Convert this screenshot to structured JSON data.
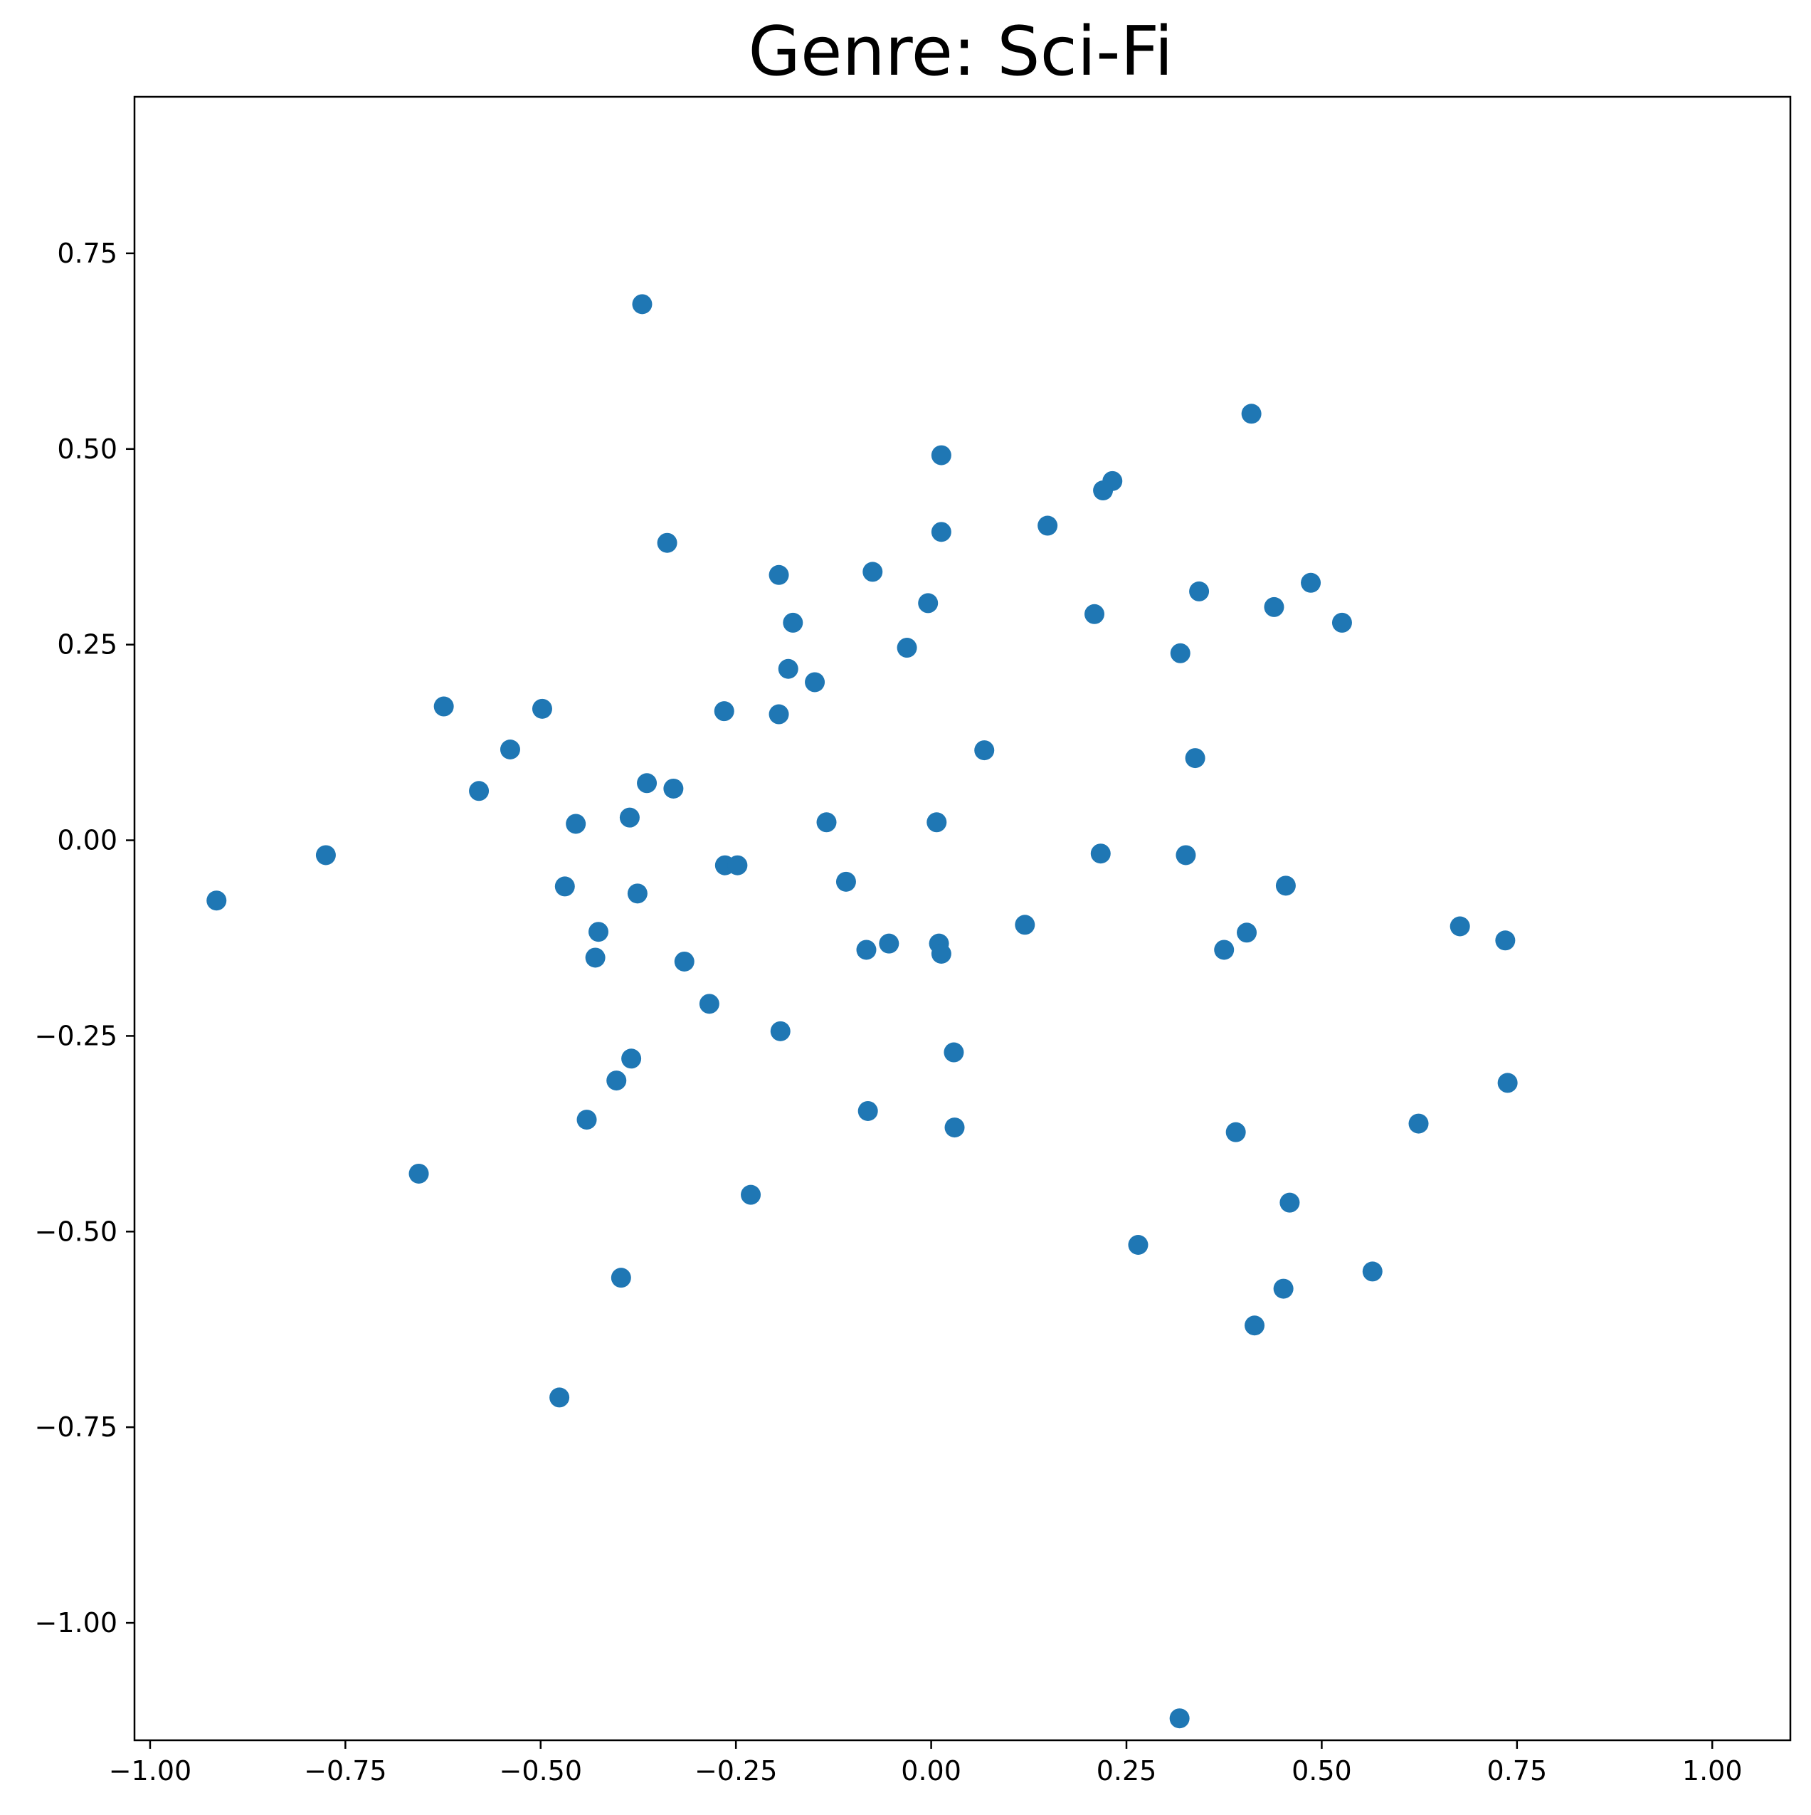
{
  "chart_data": {
    "type": "scatter",
    "title": "Genre: Sci-Fi",
    "xlabel": "",
    "ylabel": "",
    "xlim": [
      -1.02,
      1.1
    ],
    "ylim": [
      -1.15,
      0.95
    ],
    "x_ticks": [
      -1.0,
      -0.75,
      -0.5,
      -0.25,
      0.0,
      0.25,
      0.5,
      0.75,
      1.0
    ],
    "x_tick_labels": [
      "−1.00",
      "−0.75",
      "−0.50",
      "−0.25",
      "0.00",
      "0.25",
      "0.50",
      "0.75",
      "1.00"
    ],
    "y_ticks": [
      0.75,
      0.5,
      0.25,
      0.0,
      -0.25,
      -0.5,
      -0.75,
      -1.0
    ],
    "y_tick_labels": [
      "0.75",
      "0.50",
      "0.25",
      "0.00",
      "−0.25",
      "−0.50",
      "−0.75",
      "−1.00"
    ],
    "grid": false,
    "legend": false,
    "marker_color": "#1f77b4",
    "points": [
      {
        "x": -0.37,
        "y": 0.685
      },
      {
        "x": 0.41,
        "y": 0.545
      },
      {
        "x": 0.013,
        "y": 0.492
      },
      {
        "x": 0.232,
        "y": 0.459
      },
      {
        "x": 0.22,
        "y": 0.447
      },
      {
        "x": 0.149,
        "y": 0.402
      },
      {
        "x": 0.013,
        "y": 0.394
      },
      {
        "x": -0.338,
        "y": 0.38
      },
      {
        "x": -0.075,
        "y": 0.343
      },
      {
        "x": -0.195,
        "y": 0.339
      },
      {
        "x": 0.486,
        "y": 0.329
      },
      {
        "x": 0.343,
        "y": 0.318
      },
      {
        "x": -0.004,
        "y": 0.303
      },
      {
        "x": 0.439,
        "y": 0.298
      },
      {
        "x": 0.209,
        "y": 0.289
      },
      {
        "x": 0.526,
        "y": 0.278
      },
      {
        "x": -0.177,
        "y": 0.278
      },
      {
        "x": -0.031,
        "y": 0.246
      },
      {
        "x": 0.319,
        "y": 0.239
      },
      {
        "x": -0.183,
        "y": 0.219
      },
      {
        "x": -0.149,
        "y": 0.202
      },
      {
        "x": -0.624,
        "y": 0.171
      },
      {
        "x": -0.498,
        "y": 0.168
      },
      {
        "x": -0.265,
        "y": 0.165
      },
      {
        "x": -0.195,
        "y": 0.161
      },
      {
        "x": -0.539,
        "y": 0.116
      },
      {
        "x": 0.068,
        "y": 0.115
      },
      {
        "x": 0.338,
        "y": 0.105
      },
      {
        "x": -0.364,
        "y": 0.073
      },
      {
        "x": -0.33,
        "y": 0.066
      },
      {
        "x": -0.579,
        "y": 0.063
      },
      {
        "x": -0.386,
        "y": 0.029
      },
      {
        "x": -0.134,
        "y": 0.023
      },
      {
        "x": 0.007,
        "y": 0.023
      },
      {
        "x": -0.455,
        "y": 0.021
      },
      {
        "x": -0.775,
        "y": -0.019
      },
      {
        "x": 0.217,
        "y": -0.017
      },
      {
        "x": 0.326,
        "y": -0.019
      },
      {
        "x": -0.264,
        "y": -0.032
      },
      {
        "x": -0.248,
        "y": -0.032
      },
      {
        "x": -0.109,
        "y": -0.053
      },
      {
        "x": 0.454,
        "y": -0.058
      },
      {
        "x": -0.469,
        "y": -0.059
      },
      {
        "x": -0.376,
        "y": -0.068
      },
      {
        "x": -0.915,
        "y": -0.077
      },
      {
        "x": 0.12,
        "y": -0.108
      },
      {
        "x": 0.677,
        "y": -0.11
      },
      {
        "x": -0.426,
        "y": -0.117
      },
      {
        "x": 0.404,
        "y": -0.118
      },
      {
        "x": 0.735,
        "y": -0.128
      },
      {
        "x": 0.01,
        "y": -0.132
      },
      {
        "x": -0.054,
        "y": -0.132
      },
      {
        "x": -0.083,
        "y": -0.14
      },
      {
        "x": 0.375,
        "y": -0.14
      },
      {
        "x": 0.013,
        "y": -0.145
      },
      {
        "x": -0.43,
        "y": -0.15
      },
      {
        "x": -0.316,
        "y": -0.155
      },
      {
        "x": -0.284,
        "y": -0.209
      },
      {
        "x": -0.193,
        "y": -0.244
      },
      {
        "x": 0.029,
        "y": -0.271
      },
      {
        "x": -0.384,
        "y": -0.279
      },
      {
        "x": -0.403,
        "y": -0.307
      },
      {
        "x": 0.738,
        "y": -0.31
      },
      {
        "x": -0.081,
        "y": -0.346
      },
      {
        "x": -0.441,
        "y": -0.357
      },
      {
        "x": 0.624,
        "y": -0.362
      },
      {
        "x": 0.03,
        "y": -0.367
      },
      {
        "x": 0.39,
        "y": -0.373
      },
      {
        "x": -0.656,
        "y": -0.426
      },
      {
        "x": -0.231,
        "y": -0.453
      },
      {
        "x": 0.459,
        "y": -0.463
      },
      {
        "x": 0.265,
        "y": -0.517
      },
      {
        "x": 0.565,
        "y": -0.551
      },
      {
        "x": -0.397,
        "y": -0.559
      },
      {
        "x": 0.451,
        "y": -0.573
      },
      {
        "x": 0.414,
        "y": -0.62
      },
      {
        "x": -0.476,
        "y": -0.712
      },
      {
        "x": 0.318,
        "y": -1.122
      }
    ]
  }
}
